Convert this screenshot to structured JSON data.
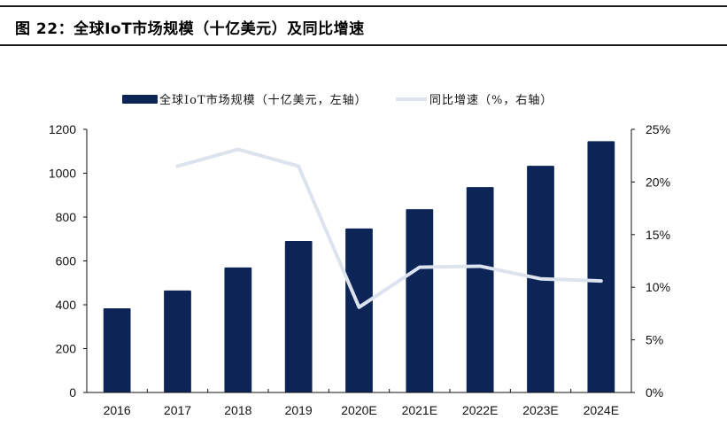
{
  "figure": {
    "title": "图 22：全球IoT市场规模（十亿美元）及同比增速"
  },
  "colors": {
    "bar": "#0c2456",
    "line": "#dce3ee",
    "axis": "#111111"
  },
  "chart_data": {
    "type": "bar",
    "title": "图 22：全球IoT市场规模（十亿美元）及同比增速",
    "categories": [
      "2016",
      "2017",
      "2018",
      "2019",
      "2020E",
      "2021E",
      "2022E",
      "2023E",
      "2024E"
    ],
    "series": [
      {
        "name": "全球IoT市场规模（十亿美元，左轴）",
        "type": "bar",
        "axis": "left",
        "values": [
          384,
          465,
          570,
          691,
          748,
          836,
          937,
          1034,
          1146
        ]
      },
      {
        "name": "同比增速（%，右轴）",
        "type": "line",
        "axis": "right",
        "values": [
          null,
          21.5,
          23.1,
          21.5,
          8.1,
          11.9,
          12.0,
          10.8,
          10.6
        ]
      }
    ],
    "left_axis": {
      "min": 0,
      "max": 1200,
      "ticks": [
        0,
        200,
        400,
        600,
        800,
        1000,
        1200
      ],
      "tick_labels": [
        "0",
        "200",
        "400",
        "600",
        "800",
        "1000",
        "1200"
      ]
    },
    "right_axis": {
      "min": 0,
      "max": 25,
      "ticks": [
        0,
        5,
        10,
        15,
        20,
        25
      ],
      "tick_labels": [
        "0%",
        "5%",
        "10%",
        "15%",
        "20%",
        "25%"
      ]
    },
    "xlabel": "",
    "ylabel": "",
    "grid": false,
    "legend_position": "top-center"
  }
}
